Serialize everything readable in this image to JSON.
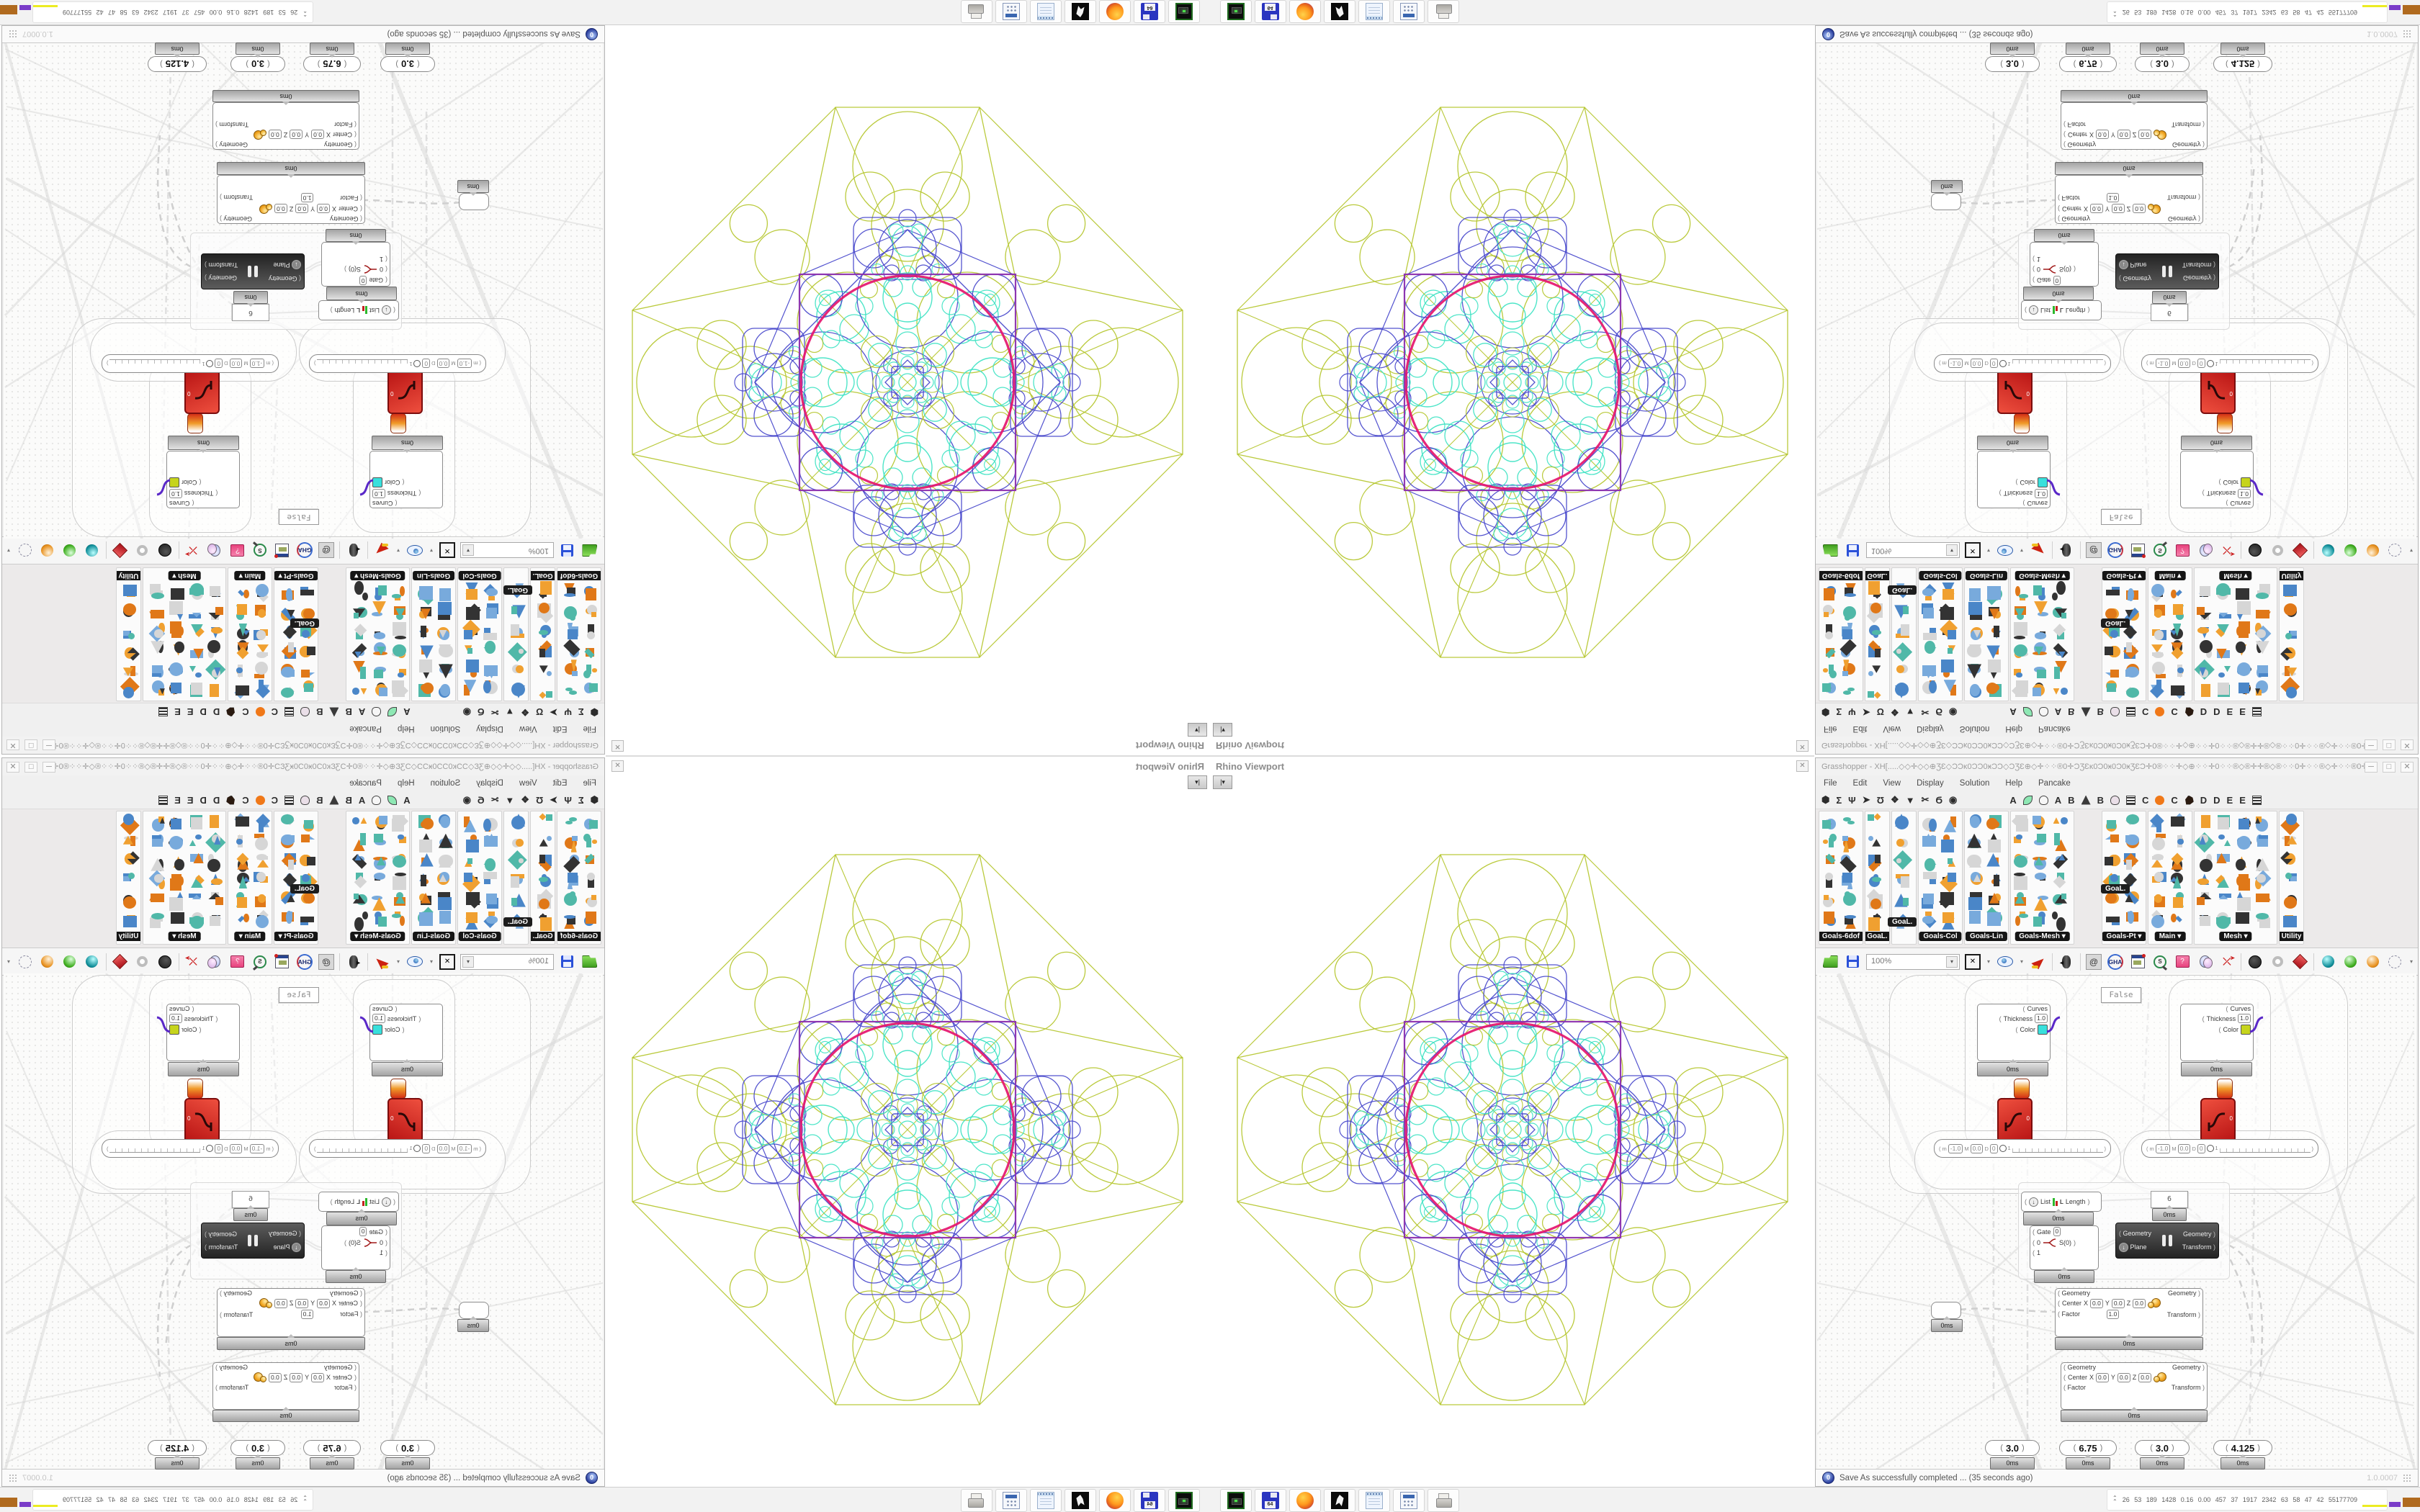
{
  "viewport": {
    "title": "Rhino Viewport",
    "close_glyph": "✕",
    "toggle_glyph": "|▾"
  },
  "gh": {
    "title": "Grasshopper - XH[.....◇◇✛◇◇⊕ƷƐ◇ƆƆĸ0ƆƆ0ӿƆƆ◇ƆƷƐ⊕◇✛⁘⁘®0✛ƆƷƐĸ0Ɔ0ӿ0Ɔ0ӿƷƐƆ✛0®⁘⁘✛◇⊕⁘⁘✛0⁘⁘®◇®✛✛®◇®⁘⁘0✛⁘⁘®◇✛⁘⁘®0✛ƆƷƐĸ0Ɔ0ӿ0…",
    "window_buttons": [
      "─",
      "□",
      "✕"
    ],
    "menus": [
      "File",
      "Edit",
      "View",
      "Display",
      "Solution",
      "Help",
      "Pancake"
    ],
    "tabs": [
      {
        "k": "glyph",
        "v": "⬢"
      },
      {
        "k": "glyph",
        "v": "Σ"
      },
      {
        "k": "glyph",
        "v": "Ψ"
      },
      {
        "k": "glyph",
        "v": "➤"
      },
      {
        "k": "glyph",
        "v": "Ʊ"
      },
      {
        "k": "glyph",
        "v": "❖"
      },
      {
        "k": "glyph",
        "v": "▼"
      },
      {
        "k": "glyph",
        "v": "✂"
      },
      {
        "k": "glyph",
        "v": "Ϭ"
      },
      {
        "k": "glyph",
        "v": "◉"
      },
      {
        "k": "sp"
      },
      {
        "k": "letter",
        "v": "A"
      },
      {
        "k": "shape",
        "v": "leaf",
        "c": "#8ee8b4"
      },
      {
        "k": "shape",
        "v": "flower",
        "c": "#f6f6f6"
      },
      {
        "k": "letter",
        "v": "A"
      },
      {
        "k": "letter",
        "v": "B"
      },
      {
        "k": "shape",
        "v": "mountain",
        "c": "#3a3a3a"
      },
      {
        "k": "letter",
        "v": "B"
      },
      {
        "k": "shape",
        "v": "shield",
        "c": "#eadfe8"
      },
      {
        "k": "shape",
        "v": "grid",
        "c": "#3a3a3a"
      },
      {
        "k": "letter",
        "v": "C"
      },
      {
        "k": "shape",
        "v": "egg",
        "c": "#f07818"
      },
      {
        "k": "letter",
        "v": "C"
      },
      {
        "k": "shape",
        "v": "kangaroo",
        "c": "#2a1a10"
      },
      {
        "k": "letter",
        "v": "D"
      },
      {
        "k": "letter",
        "v": "D"
      },
      {
        "k": "letter",
        "v": "E"
      },
      {
        "k": "letter",
        "v": "E"
      },
      {
        "k": "shape",
        "v": "grid",
        "c": "#3a3a3a"
      }
    ],
    "panels": {
      "groups": [
        {
          "label": "Goals-6dof",
          "cols": 2
        },
        {
          "label": "GoaL.",
          "cols": 1
        },
        {
          "label": "",
          "cols": 1
        },
        {
          "label": "Goals-Col",
          "cols": 2
        },
        {
          "label": "Goals-Lin",
          "cols": 2
        },
        {
          "label": "Goals-Mesh ▾",
          "cols": 3
        },
        {
          "label": "Goals-Pt ▾",
          "cols": 2,
          "gap": 36
        },
        {
          "label": "Main ▾",
          "cols": 2
        },
        {
          "label": "Mesh ▾",
          "cols": 4
        },
        {
          "label": "Utility",
          "cols": 1
        }
      ],
      "tooltips": [
        "GoaL.",
        "GoaL."
      ]
    },
    "toolbar": {
      "zoom": "100%"
    },
    "canvas": {
      "false_panel": "False",
      "preview": {
        "curves": "Curves",
        "thickness": "Thickness",
        "thickness_value": "1.0",
        "color": "Color",
        "left_color": "#38e0dc",
        "right_color": "#c6d41c"
      },
      "slider_row": {
        "m": "m",
        "m_val": "-1.0",
        "M": "M",
        "M_val": "0.0",
        "D": "D",
        "D_val": "0",
        "tick": "1"
      },
      "list": {
        "in": "List",
        "mid": "L",
        "out": "Length"
      },
      "panel_value": "6",
      "gate": {
        "label": "Gate",
        "value": "0",
        "in0": "0",
        "in1": "1",
        "out": "S(0)"
      },
      "mirror": {
        "in1": "Geometry",
        "in2": "Plane",
        "out1": "Geometry",
        "out2": "Transform"
      },
      "scale": {
        "in1": "Geometry",
        "center": "Center",
        "x": "X",
        "y": "Y",
        "z": "Z",
        "zero": "0.0",
        "factor": "Factor",
        "factor_value": "1.0",
        "out1": "Geometry",
        "out2": "Transform"
      },
      "sliders": [
        "3.0",
        "6.75",
        "3.0",
        "4.125"
      ],
      "badge": "0ms"
    },
    "status": {
      "message": "Save As successfully completed ... (35 seconds ago)",
      "version": "1.0.0007"
    }
  },
  "taskbar": {
    "icons": [
      "drive-icon",
      "floppy-64-icon",
      "firefox-icon",
      "wolf-icon",
      "notepad-icon",
      "calculator-icon",
      "printer-icon"
    ],
    "stats_chevron": "︽",
    "stats": "26 53 189 1428 0.16 0.00 457 37 1917 2342 63 58 47 42 55177709",
    "bars": [
      {
        "c": "#ecec22",
        "w": 34,
        "h": 3
      },
      {
        "c": "#7a3cc8",
        "w": 16,
        "h": 7
      },
      {
        "c": "#b06a1e",
        "w": 24,
        "h": 13
      },
      {
        "c": "#2e62c0",
        "w": 27,
        "h": 20
      },
      {
        "c": "#a85f20",
        "w": 21,
        "h": 10
      },
      {
        "c": "#39c43e",
        "w": 19,
        "h": 3
      },
      {
        "c": "#9c1c24",
        "w": 21,
        "h": 15
      }
    ]
  },
  "mandala": {
    "green": "#b4c52b",
    "blue": "#4545cb",
    "cyan": "#3fe3c3",
    "magenta": "#e5156e",
    "purple": "#8c2fae"
  }
}
